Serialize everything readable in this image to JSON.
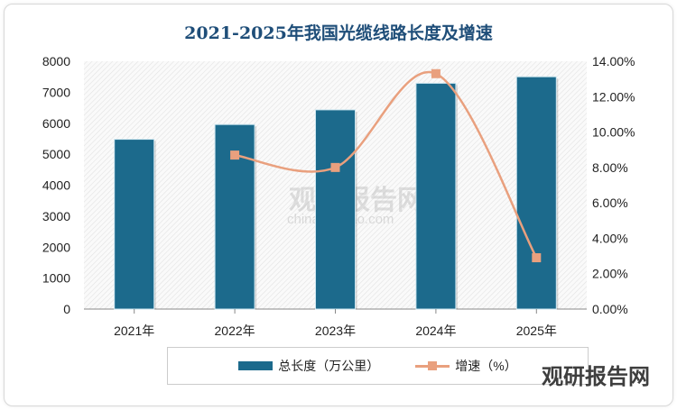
{
  "chart_data": {
    "type": "bar",
    "title": "2021-2025年我国光缆线路长度及增速",
    "categories": [
      "2021年",
      "2022年",
      "2023年",
      "2024年",
      "2025年"
    ],
    "series": [
      {
        "name": "总长度（万公里）",
        "type": "bar",
        "axis": "left",
        "values": [
          5481,
          5958,
          6432,
          7290,
          7500
        ],
        "color": "#1c6a8c"
      },
      {
        "name": "增速（%）",
        "type": "line",
        "axis": "right",
        "values": [
          null,
          8.7,
          8.0,
          13.3,
          2.9
        ],
        "color": "#e9a07e"
      }
    ],
    "ylim": [
      0,
      8000
    ],
    "yticks": [
      "0",
      "1000",
      "2000",
      "3000",
      "4000",
      "5000",
      "6000",
      "7000",
      "8000"
    ],
    "y2lim": [
      0,
      14
    ],
    "y2ticks": [
      "0.00%",
      "2.00%",
      "4.00%",
      "6.00%",
      "8.00%",
      "10.00%",
      "12.00%",
      "14.00%"
    ],
    "legend": "bottom",
    "grid": false
  },
  "watermark": {
    "text": "观研报告网",
    "subtext": "chinabaogao.com"
  }
}
